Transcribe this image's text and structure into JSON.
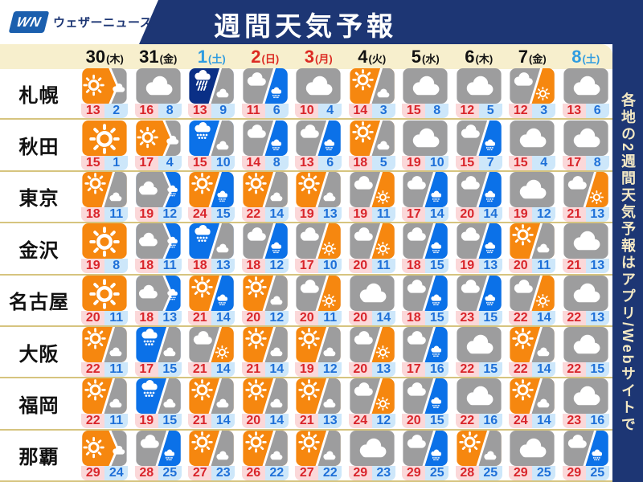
{
  "header": {
    "logo_mark": "WN",
    "logo_name": "ウェザーニュース",
    "title": "週間天気予報"
  },
  "side_banner": {
    "text": "各地の2週間天気予報はアプリ/Webサイトで"
  },
  "colors": {
    "navy": "#1d3674",
    "logo_blue": "#1b5fae",
    "cream": "#f7efcd",
    "separator": "#d6c47f",
    "icon_orange": "#f6870f",
    "icon_gray": "#9d9d9e",
    "icon_rain_blue": "#0b71e8",
    "icon_heavy_rain_navy": "#0a2f86",
    "high_bg": "#fbd8d9",
    "high_text": "#d9252b",
    "low_bg": "#cde7fa",
    "low_text": "#1e70d8",
    "date_black": "#111111",
    "date_red": "#dc2a22",
    "date_blue": "#2f9ce0",
    "banner_text": "#f3e8c4"
  },
  "icon_legend": {
    "sun": "sunny",
    "cloud": "cloudy",
    "rain": "rain",
    "rain2": "heavy-rain",
    "/": "split: first weather / second weather (diagonal)",
    ">": "split: first weather then second weather (arrow)"
  },
  "chart_data": {
    "type": "table",
    "title": "週間天気予報",
    "dates": [
      {
        "day": "30",
        "weekday": "(木)",
        "color": "black"
      },
      {
        "day": "31",
        "weekday": "(金)",
        "color": "black"
      },
      {
        "day": "1",
        "weekday": "(土)",
        "color": "blue"
      },
      {
        "day": "2",
        "weekday": "(日)",
        "color": "red"
      },
      {
        "day": "3",
        "weekday": "(月)",
        "color": "red"
      },
      {
        "day": "4",
        "weekday": "(火)",
        "color": "black"
      },
      {
        "day": "5",
        "weekday": "(水)",
        "color": "black"
      },
      {
        "day": "6",
        "weekday": "(木)",
        "color": "black"
      },
      {
        "day": "7",
        "weekday": "(金)",
        "color": "black"
      },
      {
        "day": "8",
        "weekday": "(土)",
        "color": "blue"
      }
    ],
    "rows": [
      {
        "city": "札幌",
        "cells": [
          {
            "icon": "sun>cloud",
            "high": 13,
            "low": 2
          },
          {
            "icon": "cloud",
            "high": 16,
            "low": 8
          },
          {
            "icon": "rain2/cloud",
            "high": 13,
            "low": 9
          },
          {
            "icon": "cloud/rain",
            "high": 11,
            "low": 6
          },
          {
            "icon": "cloud",
            "high": 10,
            "low": 4
          },
          {
            "icon": "sun/cloud",
            "high": 14,
            "low": 3
          },
          {
            "icon": "cloud",
            "high": 15,
            "low": 8
          },
          {
            "icon": "cloud",
            "high": 12,
            "low": 5
          },
          {
            "icon": "cloud/sun",
            "high": 12,
            "low": 3
          },
          {
            "icon": "cloud",
            "high": 13,
            "low": 6
          }
        ]
      },
      {
        "city": "秋田",
        "cells": [
          {
            "icon": "sun",
            "high": 15,
            "low": 1
          },
          {
            "icon": "sun>cloud",
            "high": 17,
            "low": 4
          },
          {
            "icon": "rain/cloud",
            "high": 15,
            "low": 10
          },
          {
            "icon": "cloud/rain",
            "high": 14,
            "low": 8
          },
          {
            "icon": "cloud/rain",
            "high": 13,
            "low": 6
          },
          {
            "icon": "sun/cloud",
            "high": 18,
            "low": 5
          },
          {
            "icon": "cloud",
            "high": 19,
            "low": 10
          },
          {
            "icon": "cloud/rain",
            "high": 15,
            "low": 7
          },
          {
            "icon": "cloud",
            "high": 15,
            "low": 4
          },
          {
            "icon": "cloud",
            "high": 17,
            "low": 8
          }
        ]
      },
      {
        "city": "東京",
        "cells": [
          {
            "icon": "sun/cloud",
            "high": 18,
            "low": 11
          },
          {
            "icon": "cloud>rain",
            "high": 19,
            "low": 12
          },
          {
            "icon": "sun/rain",
            "high": 24,
            "low": 15
          },
          {
            "icon": "sun/cloud",
            "high": 22,
            "low": 14
          },
          {
            "icon": "sun/cloud",
            "high": 19,
            "low": 13
          },
          {
            "icon": "cloud/sun",
            "high": 19,
            "low": 11
          },
          {
            "icon": "cloud/rain",
            "high": 17,
            "low": 14
          },
          {
            "icon": "cloud/rain",
            "high": 20,
            "low": 14
          },
          {
            "icon": "cloud",
            "high": 19,
            "low": 12
          },
          {
            "icon": "cloud/sun",
            "high": 21,
            "low": 13
          }
        ]
      },
      {
        "city": "金沢",
        "cells": [
          {
            "icon": "sun",
            "high": 19,
            "low": 8
          },
          {
            "icon": "cloud>rain",
            "high": 18,
            "low": 11
          },
          {
            "icon": "rain/cloud",
            "high": 18,
            "low": 13
          },
          {
            "icon": "cloud/rain",
            "high": 18,
            "low": 12
          },
          {
            "icon": "cloud/sun",
            "high": 17,
            "low": 10
          },
          {
            "icon": "cloud/sun",
            "high": 20,
            "low": 11
          },
          {
            "icon": "cloud/rain",
            "high": 18,
            "low": 15
          },
          {
            "icon": "cloud/rain",
            "high": 19,
            "low": 13
          },
          {
            "icon": "sun/cloud",
            "high": 20,
            "low": 11
          },
          {
            "icon": "cloud",
            "high": 21,
            "low": 13
          }
        ]
      },
      {
        "city": "名古屋",
        "cells": [
          {
            "icon": "sun",
            "high": 20,
            "low": 11
          },
          {
            "icon": "cloud>rain",
            "high": 18,
            "low": 13
          },
          {
            "icon": "sun/rain",
            "high": 21,
            "low": 14
          },
          {
            "icon": "sun/cloud",
            "high": 20,
            "low": 12
          },
          {
            "icon": "cloud/sun",
            "high": 20,
            "low": 11
          },
          {
            "icon": "cloud",
            "high": 20,
            "low": 14
          },
          {
            "icon": "cloud/rain",
            "high": 18,
            "low": 15
          },
          {
            "icon": "cloud/rain",
            "high": 23,
            "low": 15
          },
          {
            "icon": "cloud/sun",
            "high": 22,
            "low": 14
          },
          {
            "icon": "cloud",
            "high": 22,
            "low": 13
          }
        ]
      },
      {
        "city": "大阪",
        "cells": [
          {
            "icon": "sun/cloud",
            "high": 22,
            "low": 11
          },
          {
            "icon": "rain/cloud",
            "high": 17,
            "low": 15
          },
          {
            "icon": "cloud/sun",
            "high": 21,
            "low": 14
          },
          {
            "icon": "sun/cloud",
            "high": 21,
            "low": 14
          },
          {
            "icon": "sun/cloud",
            "high": 19,
            "low": 12
          },
          {
            "icon": "cloud/sun",
            "high": 20,
            "low": 13
          },
          {
            "icon": "cloud/rain",
            "high": 17,
            "low": 16
          },
          {
            "icon": "cloud",
            "high": 22,
            "low": 15
          },
          {
            "icon": "sun/cloud",
            "high": 22,
            "low": 14
          },
          {
            "icon": "cloud",
            "high": 22,
            "low": 15
          }
        ]
      },
      {
        "city": "福岡",
        "cells": [
          {
            "icon": "sun/cloud",
            "high": 22,
            "low": 11
          },
          {
            "icon": "rain/cloud",
            "high": 19,
            "low": 15
          },
          {
            "icon": "sun/cloud",
            "high": 21,
            "low": 14
          },
          {
            "icon": "sun/cloud",
            "high": 20,
            "low": 14
          },
          {
            "icon": "sun/cloud",
            "high": 21,
            "low": 13
          },
          {
            "icon": "cloud/sun",
            "high": 24,
            "low": 12
          },
          {
            "icon": "cloud/rain",
            "high": 20,
            "low": 15
          },
          {
            "icon": "cloud",
            "high": 22,
            "low": 16
          },
          {
            "icon": "sun/cloud",
            "high": 24,
            "low": 14
          },
          {
            "icon": "cloud",
            "high": 23,
            "low": 16
          }
        ]
      },
      {
        "city": "那覇",
        "cells": [
          {
            "icon": "sun>cloud",
            "high": 29,
            "low": 24
          },
          {
            "icon": "cloud/rain",
            "high": 28,
            "low": 25
          },
          {
            "icon": "sun/cloud",
            "high": 27,
            "low": 23
          },
          {
            "icon": "sun/cloud",
            "high": 26,
            "low": 22
          },
          {
            "icon": "sun/cloud",
            "high": 27,
            "low": 22
          },
          {
            "icon": "cloud",
            "high": 29,
            "low": 23
          },
          {
            "icon": "cloud/rain",
            "high": 29,
            "low": 25
          },
          {
            "icon": "sun/cloud",
            "high": 28,
            "low": 25
          },
          {
            "icon": "cloud",
            "high": 29,
            "low": 25
          },
          {
            "icon": "cloud/rain",
            "high": 29,
            "low": 25
          }
        ]
      }
    ]
  }
}
